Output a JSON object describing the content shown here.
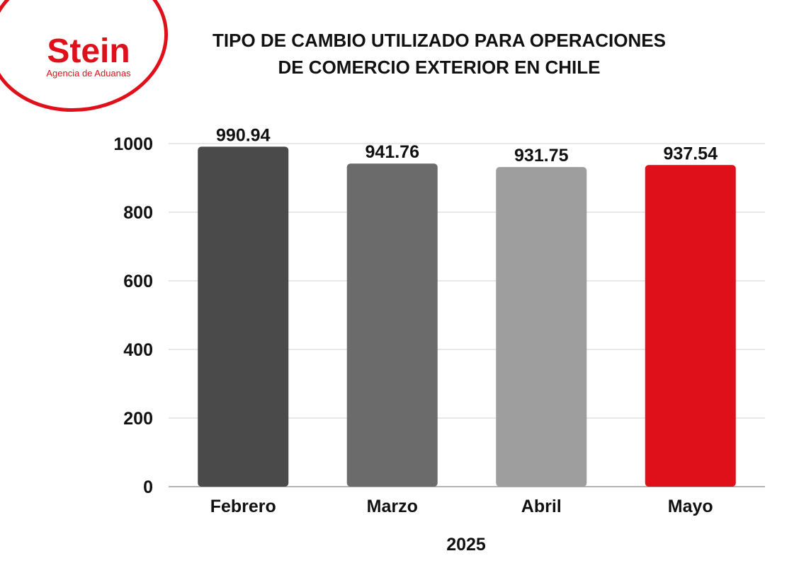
{
  "logo": {
    "name": "Stein",
    "tagline": "Agencia de Aduanas",
    "color": "#e0101a"
  },
  "title": {
    "line1": "TIPO DE CAMBIO UTILIZADO PARA OPERACIONES",
    "line2": "DE COMERCIO EXTERIOR EN CHILE"
  },
  "chart_data": {
    "type": "bar",
    "categories": [
      "Febrero",
      "Marzo",
      "Abril",
      "Mayo"
    ],
    "values": [
      990.94,
      941.76,
      931.75,
      937.54
    ],
    "data_labels": [
      "990.94",
      "941.76",
      "931.75",
      "937.54"
    ],
    "colors": [
      "#4a4a4a",
      "#6b6b6b",
      "#9e9e9e",
      "#e0101a"
    ],
    "xlabel": "2025",
    "ylabel": "",
    "ylim": [
      0,
      1000
    ],
    "yticks": [
      0,
      200,
      400,
      600,
      800,
      1000
    ],
    "grid": true,
    "legend": "none"
  }
}
